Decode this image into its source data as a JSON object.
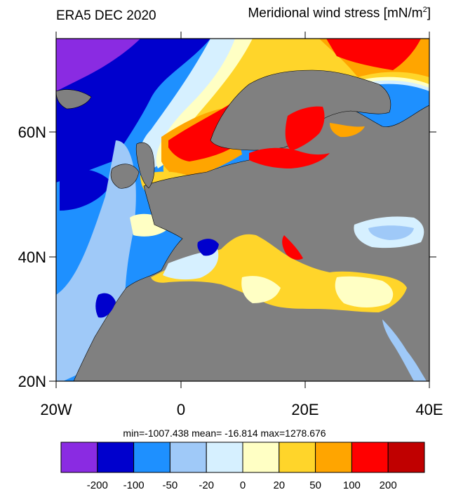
{
  "title": {
    "left": "ERA5 DEC 2020",
    "right_text": "Meridional wind stress [mN/m",
    "right_sup": "2",
    "right_close": "]"
  },
  "stats": "min=-1007.438  mean= -16.814  max=1278.676",
  "axes": {
    "y_labels": [
      "60N",
      "40N",
      "20N"
    ],
    "x_labels": [
      "20W",
      "0",
      "20E",
      "40E"
    ]
  },
  "colorbar": {
    "colors": [
      "#8a2be2",
      "#0000cd",
      "#1e90ff",
      "#9fc9f8",
      "#d6f0ff",
      "#ffffc4",
      "#ffd52a",
      "#ffa500",
      "#ff0000",
      "#c00000"
    ],
    "labels": [
      "-200",
      "-100",
      "-50",
      "-20",
      "0",
      "20",
      "50",
      "100",
      "200"
    ]
  },
  "map_colors": {
    "land": "#808080",
    "coast": "#000000"
  }
}
